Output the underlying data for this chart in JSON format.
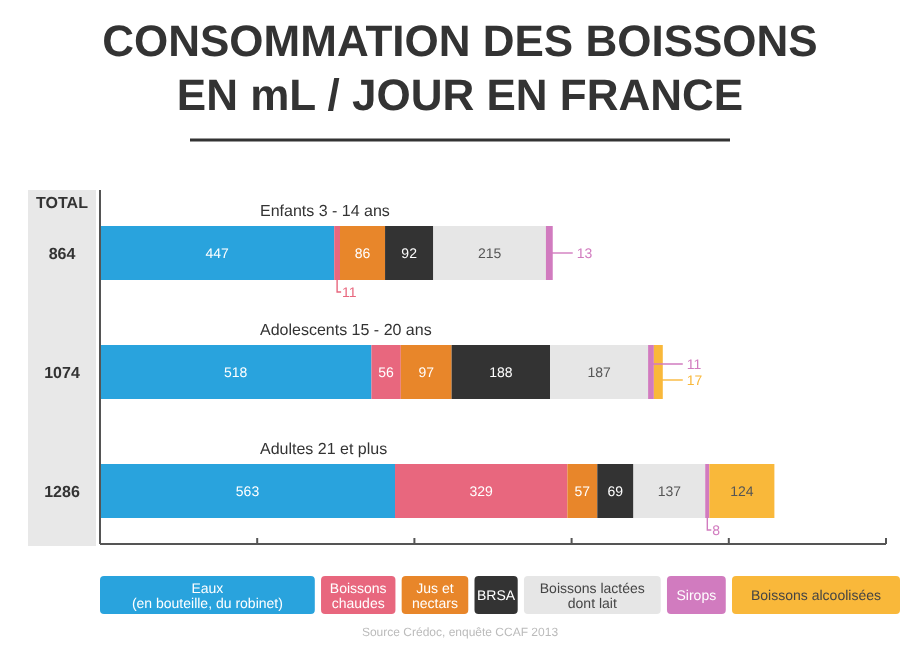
{
  "chart_data": {
    "type": "bar",
    "orientation": "horizontal",
    "stacked": true,
    "title": "CONSOMMATION DES BOISSONS EN mL / JOUR EN FRANCE",
    "categories": [
      "Enfants 3 - 14 ans",
      "Adolescents 15 - 20 ans",
      "Adultes 21 et plus"
    ],
    "series": [
      {
        "name": "Eaux\n(en bouteille, du robinet)",
        "color": "#29a3dd",
        "values": [
          447,
          518,
          563
        ]
      },
      {
        "name": "Boissons\nchaudes",
        "color": "#e8677e",
        "values": [
          11,
          56,
          329
        ]
      },
      {
        "name": "Jus et\nnectars",
        "color": "#e8862a",
        "values": [
          86,
          97,
          57
        ]
      },
      {
        "name": "BRSA",
        "color": "#333333",
        "values": [
          92,
          188,
          69
        ]
      },
      {
        "name": "Boissons lactées\ndont lait",
        "color": "#e6e6e6",
        "values": [
          215,
          187,
          137
        ]
      },
      {
        "name": "Sirops",
        "color": "#d17bbf",
        "values": [
          13,
          11,
          8
        ]
      },
      {
        "name": "Boissons alcoolisées",
        "color": "#f9b83a",
        "values": [
          null,
          17,
          124
        ]
      }
    ],
    "data_labels": true,
    "totals": [
      "864",
      "1074",
      "1286"
    ],
    "xlim": [
      0,
      1500
    ],
    "xticks": [
      {
        "value": 0,
        "label": null
      },
      {
        "value": 300,
        "label": null
      },
      {
        "value": 600,
        "label": null
      },
      {
        "value": 900,
        "label": null
      },
      {
        "value": 1200,
        "label": null
      },
      {
        "value": 1500,
        "label": null
      }
    ],
    "legend": "bottom",
    "grid": false,
    "annotations": [
      "TOTAL",
      "Source Crédoc, enquête CCAF 2013"
    ]
  }
}
